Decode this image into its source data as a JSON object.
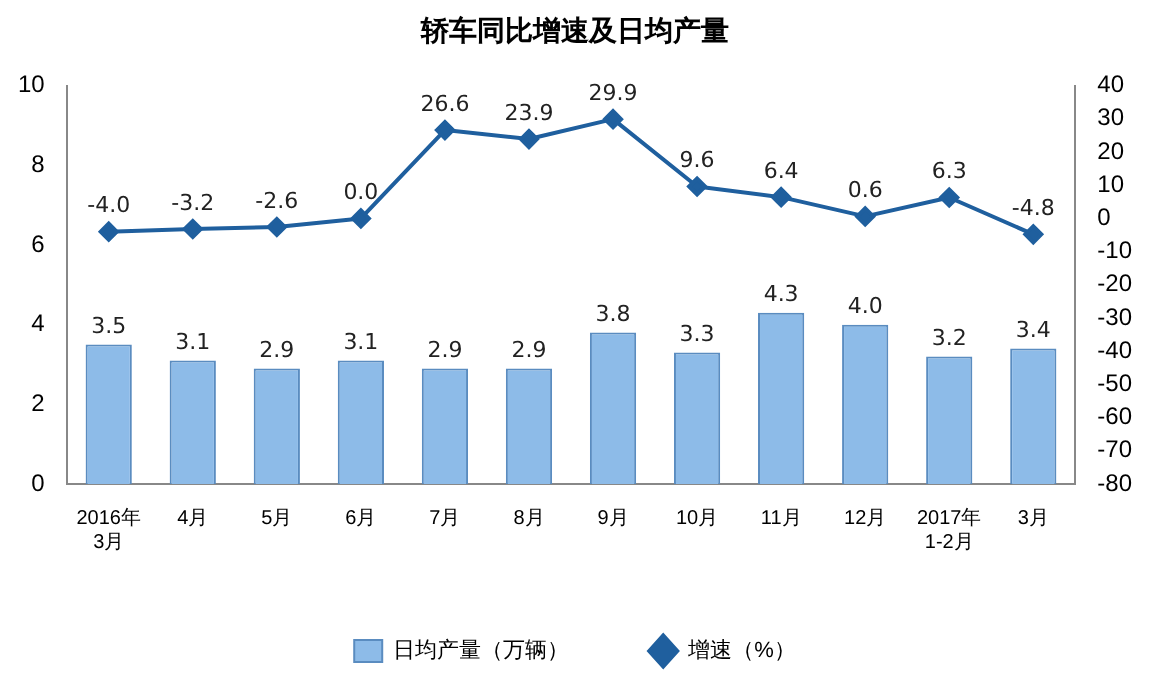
{
  "chart_data": {
    "type": "bar",
    "title": "轿车同比增速及日均产量",
    "categories": [
      "2016年\n3月",
      "4月",
      "5月",
      "6月",
      "7月",
      "8月",
      "9月",
      "10月",
      "11月",
      "12月",
      "2017年\n1-2月",
      "3月"
    ],
    "series": [
      {
        "name": "日均产量（万辆）",
        "color": "#8dbbe8",
        "values": [
          3.5,
          3.1,
          2.9,
          3.1,
          2.9,
          2.9,
          3.8,
          3.3,
          4.3,
          4.0,
          3.2,
          3.4
        ],
        "value_labels": [
          "3.5",
          "3.1",
          "2.9",
          "3.1",
          "2.9",
          "2.9",
          "3.8",
          "3.3",
          "4.3",
          "4.0",
          "3.2",
          "3.4"
        ]
      },
      {
        "name": "增速（%）",
        "type": "line",
        "axis": "y2",
        "color": "#1f5f9e",
        "values": [
          -4.0,
          -3.2,
          -2.6,
          0.0,
          26.6,
          23.9,
          29.9,
          9.6,
          6.4,
          0.6,
          6.3,
          -4.8
        ],
        "value_labels": [
          "-4.0",
          "-3.2",
          "-2.6",
          "0.0",
          "26.6",
          "23.9",
          "29.9",
          "9.6",
          "6.4",
          "0.6",
          "6.3",
          "-4.8"
        ]
      }
    ],
    "ylim": [
      0,
      10
    ],
    "yticks": [
      0,
      2,
      4,
      6,
      8,
      10
    ],
    "y2lim": [
      -80,
      40
    ],
    "y2ticks": [
      -80,
      -70,
      -60,
      -50,
      -40,
      -30,
      -20,
      -10,
      0,
      10,
      20,
      30,
      40
    ],
    "marker": "diamond",
    "grid": false,
    "legend": "bottom"
  }
}
